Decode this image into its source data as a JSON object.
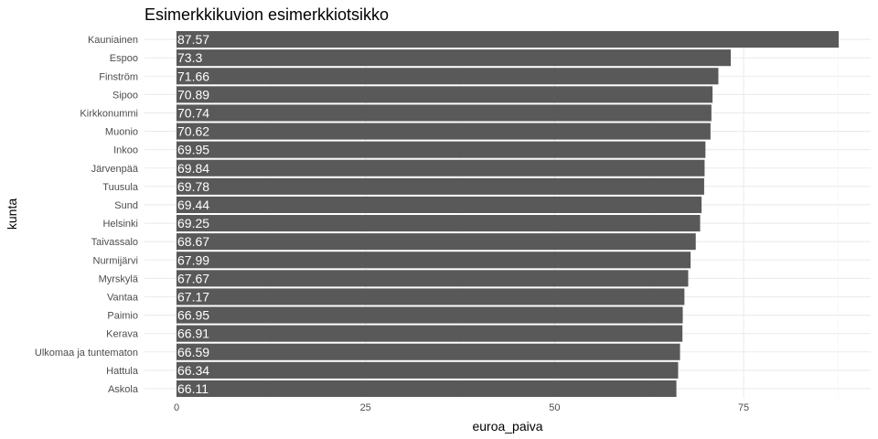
{
  "chart_data": {
    "type": "bar",
    "orientation": "horizontal",
    "title": "Esimerkkikuvion esimerkkiotsikko",
    "xlabel": "euroa_paiva",
    "ylabel": "kunta",
    "xlim": [
      0,
      87.57
    ],
    "x_ticks": [
      "0",
      "25",
      "50",
      "75"
    ],
    "x_tick_values": [
      0,
      25,
      50,
      75
    ],
    "grid": true,
    "bar_color": "#595959",
    "label_color": "#ffffff",
    "categories": [
      "Kauniainen",
      "Espoo",
      "Finström",
      "Sipoo",
      "Kirkkonummi",
      "Muonio",
      "Inkoo",
      "Järvenpää",
      "Tuusula",
      "Sund",
      "Helsinki",
      "Taivassalo",
      "Nurmijärvi",
      "Myrskylä",
      "Vantaa",
      "Paimio",
      "Kerava",
      "Ulkomaa ja tuntematon",
      "Hattula",
      "Askola"
    ],
    "values": [
      87.57,
      73.3,
      71.66,
      70.89,
      70.74,
      70.62,
      69.95,
      69.84,
      69.78,
      69.44,
      69.25,
      68.67,
      67.99,
      67.67,
      67.17,
      66.95,
      66.91,
      66.59,
      66.34,
      66.11
    ],
    "value_labels": [
      "87.57",
      "73.3",
      "71.66",
      "70.89",
      "70.74",
      "70.62",
      "69.95",
      "69.84",
      "69.78",
      "69.44",
      "69.25",
      "68.67",
      "67.99",
      "67.67",
      "67.17",
      "66.95",
      "66.91",
      "66.59",
      "66.34",
      "66.11"
    ]
  }
}
